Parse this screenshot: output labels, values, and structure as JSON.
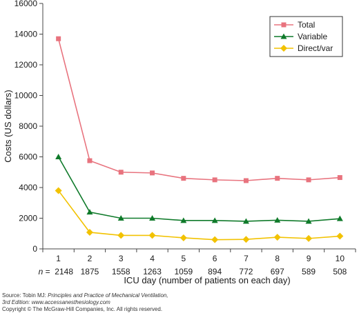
{
  "chart_data": {
    "type": "line",
    "title": "",
    "xlabel": "ICU day (number of patients on each day)",
    "ylabel": "Costs (US dollars)",
    "ylim": [
      0,
      16000
    ],
    "yticks": [
      0,
      2000,
      4000,
      6000,
      8000,
      10000,
      12000,
      14000,
      16000
    ],
    "x": [
      1,
      2,
      3,
      4,
      5,
      6,
      7,
      8,
      9,
      10
    ],
    "patient_counts": [
      "2148",
      "1875",
      "1558",
      "1263",
      "1059",
      "894",
      "772",
      "697",
      "589",
      "508"
    ],
    "n_prefix": "n = ",
    "grid": false,
    "legend_position": "top-right",
    "series": [
      {
        "name": "Total",
        "color": "#e8737e",
        "marker": "square",
        "values": [
          13700,
          5750,
          5000,
          4950,
          4600,
          4500,
          4450,
          4600,
          4500,
          4650
        ]
      },
      {
        "name": "Variable",
        "color": "#0f7a2a",
        "marker": "triangle",
        "values": [
          6000,
          2400,
          2000,
          2000,
          1850,
          1850,
          1800,
          1870,
          1800,
          1970
        ]
      },
      {
        "name": "Direct/var",
        "color": "#f2c200",
        "marker": "diamond",
        "values": [
          3800,
          1080,
          880,
          880,
          720,
          600,
          620,
          760,
          680,
          830
        ]
      }
    ]
  },
  "source": {
    "line1_prefix": "Source: Tobin MJ: ",
    "line1_title": "Principles and Practice of Mechanical Ventilation,",
    "line2": "3rd Edition: www.accessanesthesiology.com",
    "line3": "Copyright © The McGraw-Hill Companies, Inc. All rights reserved."
  }
}
